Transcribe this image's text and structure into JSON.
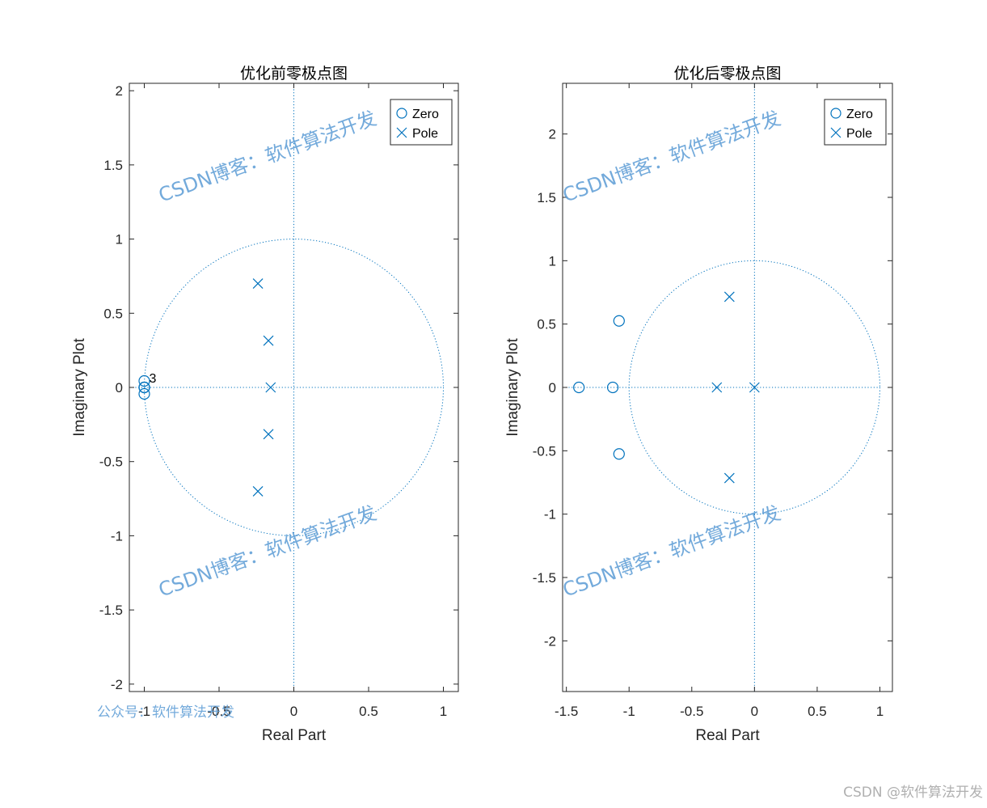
{
  "chart_data": [
    {
      "type": "scatter",
      "title": "优化前零极点图",
      "xlabel": "Real Part",
      "ylabel": "Imaginary Plot",
      "xlim": [
        -1.1,
        1.1
      ],
      "ylim": [
        -2.05,
        2.05
      ],
      "xticks": [
        -1,
        -0.5,
        0,
        0.5,
        1
      ],
      "xtick_labels": [
        "-1",
        "-0.5",
        "0",
        "0.5",
        "1"
      ],
      "yticks": [
        -2,
        -1.5,
        -1,
        -0.5,
        0,
        0.5,
        1,
        1.5,
        2
      ],
      "ytick_labels": [
        "-2",
        "-1.5",
        "-1",
        "-0.5",
        "0",
        "0.5",
        "1",
        "1.5",
        "2"
      ],
      "unit_circle": true,
      "series": [
        {
          "name": "Zero",
          "marker": "circle",
          "points": [
            [
              -1,
              0
            ],
            [
              -1,
              0
            ],
            [
              -1,
              0
            ]
          ]
        },
        {
          "name": "Pole",
          "marker": "x",
          "points": [
            [
              -0.24,
              0.7
            ],
            [
              -0.17,
              0.315
            ],
            [
              -0.155,
              0
            ],
            [
              -0.17,
              -0.315
            ],
            [
              -0.24,
              -0.7
            ]
          ]
        }
      ],
      "annotations": [
        {
          "text": "3",
          "x": -1,
          "y": 0
        }
      ],
      "legend": "top-right"
    },
    {
      "type": "scatter",
      "title": "优化后零极点图",
      "xlabel": "Real Part",
      "ylabel": "Imaginary Plot",
      "xlim": [
        -1.53,
        1.1
      ],
      "ylim": [
        -2.4,
        2.4
      ],
      "xticks": [
        -1.5,
        -1,
        -0.5,
        0,
        0.5,
        1
      ],
      "xtick_labels": [
        "-1.5",
        "-1",
        "-0.5",
        "0",
        "0.5",
        "1"
      ],
      "yticks": [
        -2,
        -1.5,
        -1,
        -0.5,
        0,
        0.5,
        1,
        1.5,
        2
      ],
      "ytick_labels": [
        "-2",
        "-1.5",
        "-1",
        "-0.5",
        "0",
        "0.5",
        "1",
        "1.5",
        "2"
      ],
      "unit_circle": true,
      "series": [
        {
          "name": "Zero",
          "marker": "circle",
          "points": [
            [
              -1.08,
              0.525
            ],
            [
              -1.4,
              0
            ],
            [
              -1.13,
              0
            ],
            [
              -1.08,
              -0.525
            ]
          ]
        },
        {
          "name": "Pole",
          "marker": "x",
          "points": [
            [
              -0.2,
              0.715
            ],
            [
              -0.3,
              0
            ],
            [
              0,
              0
            ],
            [
              -0.2,
              -0.715
            ]
          ]
        }
      ],
      "annotations": [],
      "legend": "top-right"
    }
  ],
  "watermarks": {
    "blog": "CSDN博客：软件算法开发",
    "wechat": "公众号：软件算法开发",
    "credit": "CSDN @软件算法开发"
  },
  "colors": {
    "marker": "#0072bd",
    "axes": "#262626",
    "watermark": "#5b9bd5"
  }
}
